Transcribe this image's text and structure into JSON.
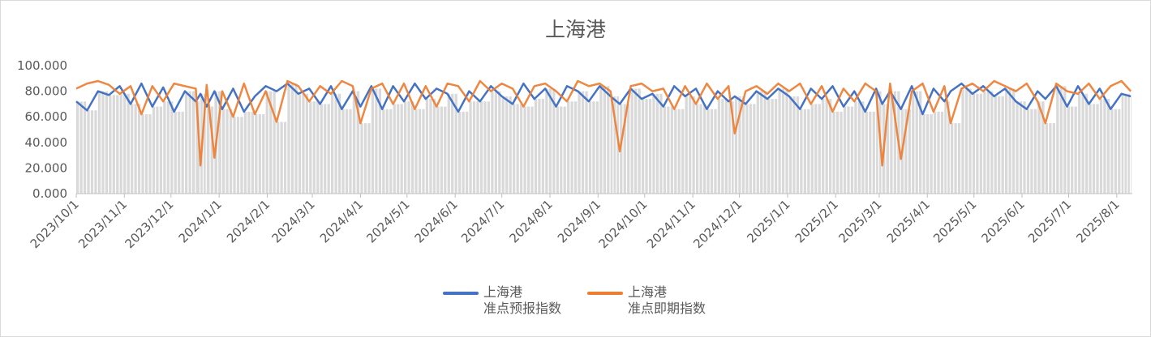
{
  "chart_data": {
    "type": "line",
    "title": "上海港",
    "ylim": [
      0,
      100
    ],
    "yticks": [
      "0.000",
      "20.000",
      "40.000",
      "60.000",
      "80.000",
      "100.000"
    ],
    "xticks": [
      "2023/10/1",
      "2023/11/1",
      "2023/12/1",
      "2024/1/1",
      "2024/2/1",
      "2024/3/1",
      "2024/4/1",
      "2024/5/1",
      "2024/6/1",
      "2024/7/1",
      "2024/8/1",
      "2024/9/1",
      "2024/10/1",
      "2024/11/1",
      "2024/12/1",
      "2025/1/1",
      "2025/2/1",
      "2025/3/1",
      "2025/4/1",
      "2025/5/1",
      "2025/6/1",
      "2025/7/1",
      "2025/8/1"
    ],
    "grid": false,
    "legend_position": "bottom",
    "colors": {
      "series1": "#4472c4",
      "series2": "#ed7d31",
      "columns": "#d9d9d9"
    },
    "x": [
      "2023/10/1",
      "2023/10/8",
      "2023/10/15",
      "2023/10/22",
      "2023/10/29",
      "2023/11/5",
      "2023/11/12",
      "2023/11/19",
      "2023/11/26",
      "2023/12/3",
      "2023/12/10",
      "2023/12/17",
      "2023/12/20",
      "2023/12/24",
      "2023/12/29",
      "2024/1/3",
      "2024/1/10",
      "2024/1/17",
      "2024/1/24",
      "2024/1/31",
      "2024/2/7",
      "2024/2/14",
      "2024/2/21",
      "2024/2/28",
      "2024/3/6",
      "2024/3/13",
      "2024/3/20",
      "2024/3/27",
      "2024/4/1",
      "2024/4/8",
      "2024/4/15",
      "2024/4/22",
      "2024/4/29",
      "2024/5/6",
      "2024/5/13",
      "2024/5/20",
      "2024/5/27",
      "2024/6/3",
      "2024/6/10",
      "2024/6/17",
      "2024/6/24",
      "2024/7/1",
      "2024/7/8",
      "2024/7/15",
      "2024/7/22",
      "2024/7/29",
      "2024/8/5",
      "2024/8/12",
      "2024/8/19",
      "2024/8/26",
      "2024/9/2",
      "2024/9/9",
      "2024/9/15",
      "2024/9/22",
      "2024/9/29",
      "2024/10/6",
      "2024/10/13",
      "2024/10/20",
      "2024/10/27",
      "2024/11/3",
      "2024/11/10",
      "2024/11/17",
      "2024/11/24",
      "2024/11/28",
      "2024/12/5",
      "2024/12/12",
      "2024/12/19",
      "2024/12/26",
      "2025/1/2",
      "2025/1/9",
      "2025/1/16",
      "2025/1/23",
      "2025/1/30",
      "2025/2/6",
      "2025/2/13",
      "2025/2/20",
      "2025/2/27",
      "2025/3/3",
      "2025/3/8",
      "2025/3/15",
      "2025/3/22",
      "2025/3/29",
      "2025/4/5",
      "2025/4/12",
      "2025/4/16",
      "2025/4/23",
      "2025/4/30",
      "2025/5/7",
      "2025/5/14",
      "2025/5/21",
      "2025/5/28",
      "2025/6/4",
      "2025/6/11",
      "2025/6/16",
      "2025/6/23",
      "2025/6/30",
      "2025/7/7",
      "2025/7/14",
      "2025/7/21",
      "2025/7/28",
      "2025/8/4",
      "2025/8/10"
    ],
    "series": [
      {
        "name": "上海港\n准点预报指数",
        "name_line1": "上海港",
        "name_line2": "准点预报指数",
        "values": [
          72,
          65,
          80,
          77,
          84,
          70,
          86,
          68,
          83,
          64,
          80,
          72,
          78,
          68,
          80,
          66,
          82,
          64,
          76,
          84,
          80,
          86,
          78,
          82,
          70,
          84,
          66,
          80,
          68,
          84,
          66,
          84,
          72,
          86,
          74,
          82,
          78,
          64,
          80,
          72,
          84,
          76,
          70,
          86,
          74,
          82,
          68,
          84,
          80,
          72,
          84,
          76,
          70,
          82,
          74,
          78,
          68,
          84,
          76,
          82,
          66,
          80,
          72,
          76,
          70,
          80,
          74,
          82,
          76,
          66,
          82,
          74,
          84,
          68,
          80,
          64,
          82,
          70,
          80,
          66,
          84,
          62,
          82,
          72,
          80,
          86,
          78,
          84,
          76,
          82,
          72,
          66,
          80,
          74,
          84,
          68,
          84,
          70,
          82,
          66,
          78,
          76
        ]
      },
      {
        "name": "上海港\n准点即期指数",
        "name_line1": "上海港",
        "name_line2": "准点即期指数",
        "values": [
          82,
          86,
          88,
          85,
          78,
          84,
          62,
          84,
          72,
          86,
          84,
          82,
          22,
          85,
          28,
          80,
          60,
          86,
          62,
          80,
          56,
          88,
          84,
          72,
          84,
          78,
          88,
          84,
          55,
          82,
          86,
          70,
          86,
          66,
          84,
          68,
          86,
          84,
          72,
          88,
          80,
          86,
          82,
          68,
          84,
          86,
          80,
          72,
          88,
          84,
          86,
          80,
          33,
          84,
          86,
          80,
          82,
          66,
          84,
          70,
          86,
          74,
          84,
          47,
          80,
          84,
          78,
          86,
          80,
          86,
          70,
          84,
          64,
          82,
          72,
          86,
          80,
          22,
          86,
          27,
          80,
          86,
          64,
          84,
          55,
          82,
          86,
          80,
          88,
          84,
          80,
          86,
          72,
          55,
          86,
          80,
          78,
          86,
          74,
          84,
          88,
          80
        ]
      }
    ]
  }
}
